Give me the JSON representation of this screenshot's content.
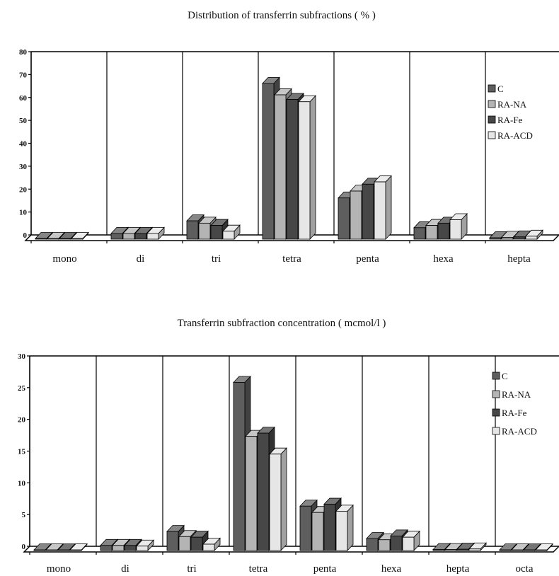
{
  "colors": {
    "C": "#5e5e5e",
    "RA-NA": "#b4b4b4",
    "RA-Fe": "#474747",
    "RA-ACD": "#e6e6e6"
  },
  "chart_data": [
    {
      "type": "bar",
      "title": "Distribution of transferrin subfractions ( % )",
      "categories": [
        "mono",
        "di",
        "tri",
        "tetra",
        "penta",
        "hexa",
        "hepta"
      ],
      "yticks": [
        "0",
        "10",
        "20",
        "30",
        "40",
        "50",
        "60",
        "70",
        "80"
      ],
      "ylim": [
        0,
        80
      ],
      "legend_position": "top-right",
      "series": [
        {
          "name": "C",
          "values": [
            0.3,
            2.5,
            8,
            68,
            18,
            5,
            0.6
          ]
        },
        {
          "name": "RA-NA",
          "values": [
            0.3,
            2.5,
            7,
            63,
            21,
            6,
            0.8
          ]
        },
        {
          "name": "RA-Fe",
          "values": [
            0.3,
            2.5,
            6,
            61,
            24,
            7,
            1.0
          ]
        },
        {
          "name": "RA-ACD",
          "values": [
            0.3,
            2.5,
            3.5,
            60,
            25,
            8.5,
            1.3
          ]
        }
      ]
    },
    {
      "type": "bar",
      "title": "Transferrin subfraction concentration ( mcmol/l )",
      "categories": [
        "mono",
        "di",
        "tri",
        "tetra",
        "penta",
        "hexa",
        "hepta",
        "octa"
      ],
      "yticks": [
        "0",
        "5",
        "10",
        "15",
        "20",
        "25",
        "30"
      ],
      "ylim": [
        0,
        30
      ],
      "legend_position": "top-right",
      "series": [
        {
          "name": "C",
          "values": [
            0.1,
            0.8,
            3,
            26.5,
            7,
            1.9,
            0.15,
            0.1
          ]
        },
        {
          "name": "RA-NA",
          "values": [
            0.1,
            0.8,
            2.2,
            18,
            6,
            1.7,
            0.15,
            0.1
          ]
        },
        {
          "name": "RA-Fe",
          "values": [
            0.1,
            0.8,
            2.1,
            18.5,
            7.3,
            2.3,
            0.2,
            0.1
          ]
        },
        {
          "name": "RA-ACD",
          "values": [
            0.1,
            0.7,
            1,
            15.2,
            6.2,
            2.1,
            0.25,
            0.1
          ]
        }
      ]
    }
  ]
}
